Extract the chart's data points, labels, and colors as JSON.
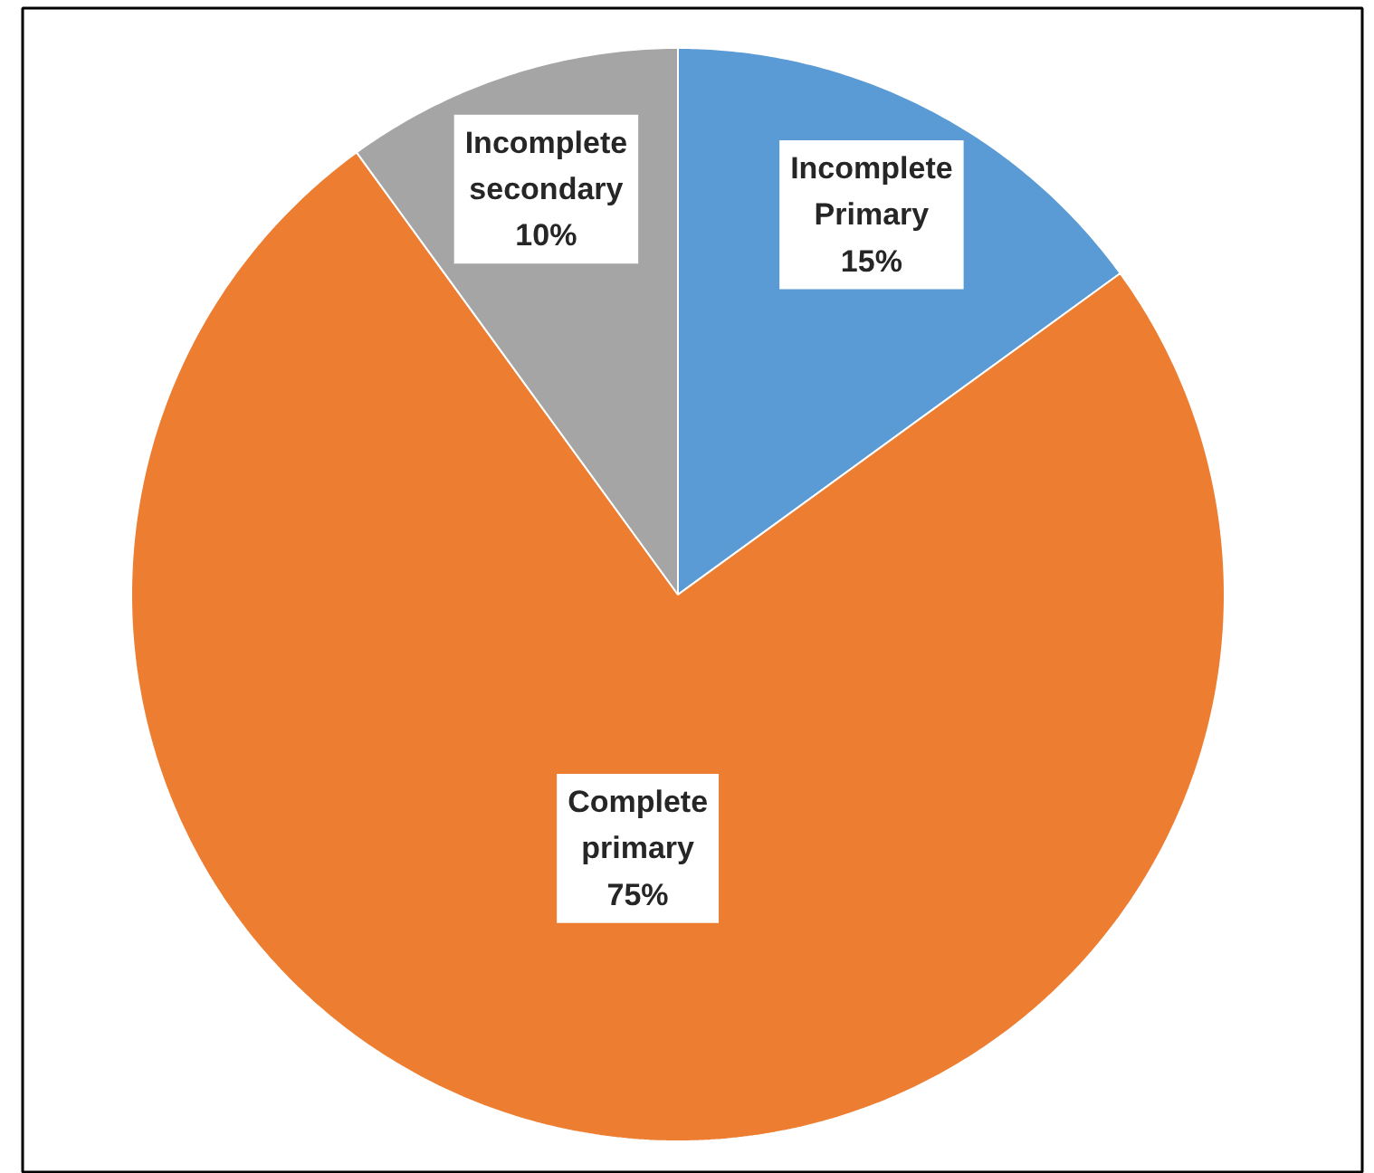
{
  "chart_data": {
    "type": "pie",
    "categories": [
      "Incomplete Primary",
      "Complete primary",
      "Incomplete secondary"
    ],
    "values": [
      15,
      75,
      10
    ],
    "colors": [
      "#5b9bd5",
      "#ed7d31",
      "#a5a5a5"
    ],
    "value_labels": [
      "15%",
      "75%",
      "10%"
    ]
  }
}
